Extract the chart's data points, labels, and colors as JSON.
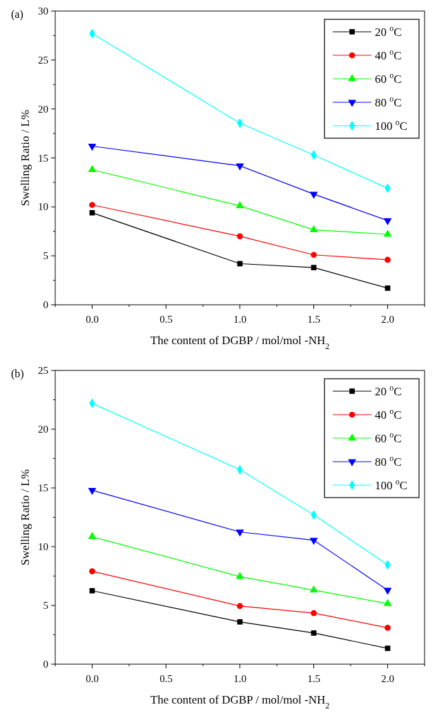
{
  "chart_data": [
    {
      "type": "line",
      "title": "(a)",
      "xlabel": "The content of DGBP / mol/mol -NH$_{2}$",
      "ylabel": "Swelling Ratio / L%",
      "x": [
        0,
        1,
        1.5,
        2
      ],
      "xlim": [
        -0.25,
        2.25
      ],
      "xticks": [
        {
          "value": -0.25,
          "label": null
        },
        {
          "value": 0,
          "label": "0.0"
        },
        {
          "value": 0.25,
          "label": null
        },
        {
          "value": 0.5,
          "label": "0.5"
        },
        {
          "value": 0.75,
          "label": null
        },
        {
          "value": 1,
          "label": "1.0"
        },
        {
          "value": 1.25,
          "label": null
        },
        {
          "value": 1.5,
          "label": "1.5"
        },
        {
          "value": 1.75,
          "label": null
        },
        {
          "value": 2,
          "label": "2.0"
        },
        {
          "value": 2.25,
          "label": null
        }
      ],
      "ylim": [
        0,
        30
      ],
      "yticks": [
        0,
        {
          "value": 2.5,
          "label": null
        },
        5,
        {
          "value": 7.5,
          "label": null
        },
        10,
        {
          "value": 12.5,
          "label": null
        },
        15,
        {
          "value": 17.5,
          "label": null
        },
        20,
        {
          "value": 22.5,
          "label": null
        },
        25,
        {
          "value": 27.5,
          "label": null
        },
        30
      ],
      "grid": false,
      "legend": "top right",
      "line_style": "solid",
      "series": [
        {
          "name": "20 $^{o}$C",
          "color": "#000000",
          "marker": "square",
          "values": [
            9.4,
            4.2,
            3.8,
            1.7
          ]
        },
        {
          "name": "40 $^{o}$C",
          "color": "#ff0000",
          "marker": "circle",
          "values": [
            10.2,
            7.0,
            5.1,
            4.6
          ]
        },
        {
          "name": "60 $^{o}$C",
          "color": "#00ff00",
          "marker": "triangle",
          "values": [
            13.8,
            10.1,
            7.65,
            7.2
          ]
        },
        {
          "name": "80 $^{o}$C",
          "color": "#0000ff",
          "marker": "triangle-down",
          "values": [
            16.2,
            14.2,
            11.3,
            8.6
          ]
        },
        {
          "name": "100 $^{o}$C",
          "color": "#00ffff",
          "marker": "diamond",
          "values": [
            27.7,
            18.55,
            15.3,
            11.9
          ]
        }
      ]
    },
    {
      "type": "line",
      "title": "(b)",
      "xlabel": "The content of DGBP / mol/mol -NH$_{2}$",
      "ylabel": "Swelling Ratio / L%",
      "x": [
        0,
        1,
        1.5,
        2
      ],
      "xlim": [
        -0.25,
        2.25
      ],
      "xticks": [
        {
          "value": -0.25,
          "label": null
        },
        {
          "value": 0,
          "label": "0.0"
        },
        {
          "value": 0.25,
          "label": null
        },
        {
          "value": 0.5,
          "label": "0.5"
        },
        {
          "value": 0.75,
          "label": null
        },
        {
          "value": 1,
          "label": "1.0"
        },
        {
          "value": 1.25,
          "label": null
        },
        {
          "value": 1.5,
          "label": "1.5"
        },
        {
          "value": 1.75,
          "label": null
        },
        {
          "value": 2,
          "label": "2.0"
        },
        {
          "value": 2.25,
          "label": null
        }
      ],
      "ylim": [
        0,
        25
      ],
      "yticks": [
        0,
        {
          "value": 2.5,
          "label": null
        },
        5,
        {
          "value": 7.5,
          "label": null
        },
        10,
        {
          "value": 12.5,
          "label": null
        },
        15,
        {
          "value": 17.5,
          "label": null
        },
        20,
        {
          "value": 22.5,
          "label": null
        },
        25
      ],
      "grid": false,
      "legend": "top right",
      "line_style": "solid",
      "series": [
        {
          "name": "20 $^{o}$C",
          "color": "#000000",
          "marker": "square",
          "values": [
            6.25,
            3.6,
            2.65,
            1.35
          ]
        },
        {
          "name": "40 $^{o}$C",
          "color": "#ff0000",
          "marker": "circle",
          "values": [
            7.9,
            4.95,
            4.35,
            3.1
          ]
        },
        {
          "name": "60 $^{o}$C",
          "color": "#00ff00",
          "marker": "triangle",
          "values": [
            10.85,
            7.45,
            6.3,
            5.15
          ]
        },
        {
          "name": "80 $^{o}$C",
          "color": "#0000ff",
          "marker": "triangle-down",
          "values": [
            14.8,
            11.25,
            10.55,
            6.3
          ]
        },
        {
          "name": "100 $^{o}$C",
          "color": "#00ffff",
          "marker": "diamond",
          "values": [
            22.2,
            16.55,
            12.7,
            8.45
          ]
        }
      ]
    }
  ]
}
